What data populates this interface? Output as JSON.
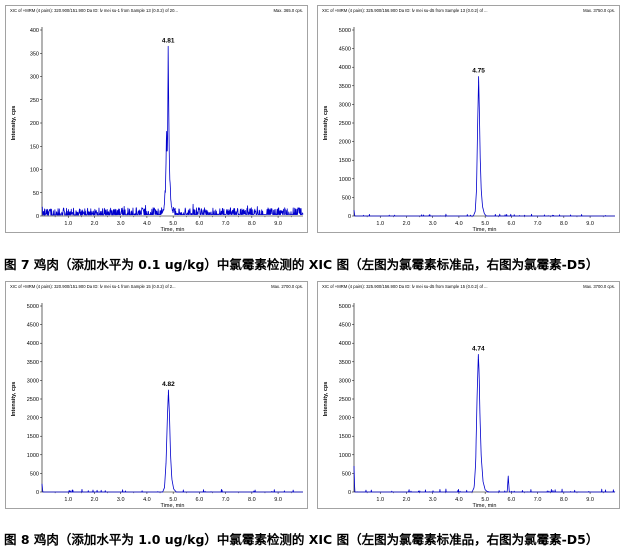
{
  "captions": [
    "图 7 鸡肉（添加水平为 0.1 ug/kg）中氯霉素检测的 XIC 图（左图为氯霉素标准品，右图为氯霉素-D5）",
    "图 8 鸡肉（添加水平为 1.0 ug/kg）中氯霉素检测的 XIC 图（左图为氯霉素标准品，右图为氯霉素-D5）"
  ],
  "trace_color": "#0000cc",
  "chart_data": [
    {
      "type": "line",
      "header": "XIC of +MRM (4 pairs): 320.900/151.900 Da ID: lv mei su-1 from Sample 13 (0.0.2) of 20...",
      "max_label": "Max. 365.0 cps.",
      "xlabel": "Time, min",
      "ylabel": "Intensity, cps",
      "xlim": [
        0,
        9.95
      ],
      "ylim": [
        0,
        400
      ],
      "x_ticks": [
        "1.0",
        "2.0",
        "3.0",
        "4.0",
        "5.0",
        "6.0",
        "7.0",
        "8.0",
        "9.0"
      ],
      "y_ticks": [
        "0",
        "50",
        "100",
        "150",
        "200",
        "250",
        "300",
        "350",
        "400"
      ],
      "series": {
        "x": [
          0,
          0.03,
          4.55,
          4.65,
          4.71,
          4.75,
          4.77,
          4.79,
          4.81,
          4.83,
          4.85,
          4.88,
          4.92,
          4.98,
          5.05,
          9.95
        ],
        "y": [
          18,
          2,
          3,
          14,
          55,
          185,
          120,
          160,
          365,
          240,
          130,
          60,
          25,
          8,
          3,
          3
        ]
      },
      "peaks": [
        {
          "label": "4.81",
          "x": 4.81,
          "y": 365
        }
      ]
    },
    {
      "type": "line",
      "header": "XIC of +MRM (4 pairs): 325.900/156.900 Da ID: lv mei su-d5 from Sample 13 (0.0.2) of ...",
      "max_label": "Max. 3750.0 cps.",
      "xlabel": "Time, min",
      "ylabel": "Intensity, cps",
      "xlim": [
        0,
        9.95
      ],
      "ylim": [
        0,
        5000
      ],
      "x_ticks": [
        "1.0",
        "2.0",
        "3.0",
        "4.0",
        "5.0",
        "6.0",
        "7.0",
        "8.0",
        "9.0"
      ],
      "y_ticks": [
        "0",
        "500",
        "1000",
        "1500",
        "2000",
        "2500",
        "3000",
        "3500",
        "4000",
        "4500",
        "5000"
      ],
      "series": {
        "x": [
          0,
          0.03,
          4.55,
          4.62,
          4.67,
          4.71,
          4.75,
          4.78,
          4.81,
          4.85,
          4.9,
          4.97,
          5.05,
          9.95
        ],
        "y": [
          160,
          0,
          0,
          120,
          700,
          2300,
          3750,
          2800,
          1600,
          700,
          250,
          60,
          0,
          0
        ]
      },
      "peaks": [
        {
          "label": "4.75",
          "x": 4.75,
          "y": 3750
        }
      ]
    },
    {
      "type": "line",
      "header": "XIC of +MRM (4 pairs): 320.900/151.900 Da ID: lv mei su-1 from Sample 15 (0.0.2) of 2...",
      "max_label": "Max. 2700.0 cps.",
      "xlabel": "Time, min",
      "ylabel": "Intensity, cps",
      "xlim": [
        0,
        9.95
      ],
      "ylim": [
        0,
        5000
      ],
      "x_ticks": [
        "1.0",
        "2.0",
        "3.0",
        "4.0",
        "5.0",
        "6.0",
        "7.0",
        "8.0",
        "9.0"
      ],
      "y_ticks": [
        "0",
        "500",
        "1000",
        "1500",
        "2000",
        "2500",
        "3000",
        "3500",
        "4000",
        "4500",
        "5000"
      ],
      "series": {
        "x": [
          0,
          0.03,
          4.6,
          4.67,
          4.73,
          4.78,
          4.82,
          4.86,
          4.9,
          4.95,
          5.02,
          5.12,
          9.95
        ],
        "y": [
          220,
          0,
          0,
          120,
          800,
          2000,
          2740,
          2050,
          1000,
          350,
          80,
          0,
          0
        ]
      },
      "peaks": [
        {
          "label": "4.82",
          "x": 4.82,
          "y": 2740
        }
      ]
    },
    {
      "type": "line",
      "header": "XIC of +MRM (4 pairs): 325.900/156.900 Da ID: lv mei su-d5 from Sample 15 (0.0.2) of ...",
      "max_label": "Max. 3700.0 cps.",
      "xlabel": "Time, min",
      "ylabel": "Intensity, cps",
      "xlim": [
        0,
        9.95
      ],
      "ylim": [
        0,
        5000
      ],
      "x_ticks": [
        "1.0",
        "2.0",
        "3.0",
        "4.0",
        "5.0",
        "6.0",
        "7.0",
        "8.0",
        "9.0"
      ],
      "y_ticks": [
        "0",
        "500",
        "1000",
        "1500",
        "2000",
        "2500",
        "3000",
        "3500",
        "4000",
        "4500",
        "5000"
      ],
      "series": {
        "x": [
          0,
          0.03,
          4.5,
          4.58,
          4.64,
          4.69,
          4.74,
          4.77,
          4.8,
          4.85,
          4.92,
          5.0,
          5.1,
          5.84,
          5.88,
          5.92,
          9.95
        ],
        "y": [
          700,
          0,
          0,
          120,
          800,
          2500,
          3700,
          3200,
          2100,
          950,
          280,
          60,
          0,
          0,
          430,
          0,
          0
        ]
      },
      "peaks": [
        {
          "label": "4.74",
          "x": 4.74,
          "y": 3700
        }
      ]
    }
  ]
}
